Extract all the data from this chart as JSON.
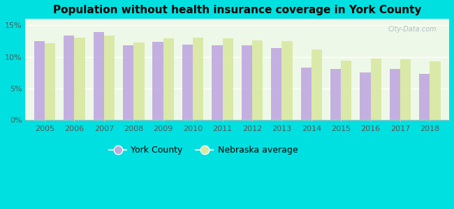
{
  "title": "Population without health insurance coverage in York County",
  "years": [
    2005,
    2006,
    2007,
    2008,
    2009,
    2010,
    2011,
    2012,
    2013,
    2014,
    2015,
    2016,
    2017,
    2018
  ],
  "york_county": [
    12.5,
    13.4,
    13.9,
    11.8,
    12.4,
    12.0,
    11.8,
    11.8,
    11.4,
    8.3,
    8.1,
    7.5,
    8.1,
    7.3
  ],
  "nebraska_avg": [
    12.2,
    13.0,
    13.4,
    12.3,
    12.9,
    13.0,
    12.9,
    12.6,
    12.5,
    11.2,
    9.4,
    9.7,
    9.6,
    9.3
  ],
  "york_color": "#c0a8e0",
  "nebraska_color": "#d8e8a0",
  "background_color": "#00e0e0",
  "plot_bg_color": "#eef8e8",
  "ylim": [
    0,
    16
  ],
  "yticks": [
    0,
    5,
    10,
    15
  ],
  "ytick_labels": [
    "0%",
    "5%",
    "10%",
    "15%"
  ],
  "legend_york": "York County",
  "legend_nebraska": "Nebraska average",
  "watermark": "City-Data.com",
  "title_fontsize": 11,
  "tick_fontsize": 8
}
